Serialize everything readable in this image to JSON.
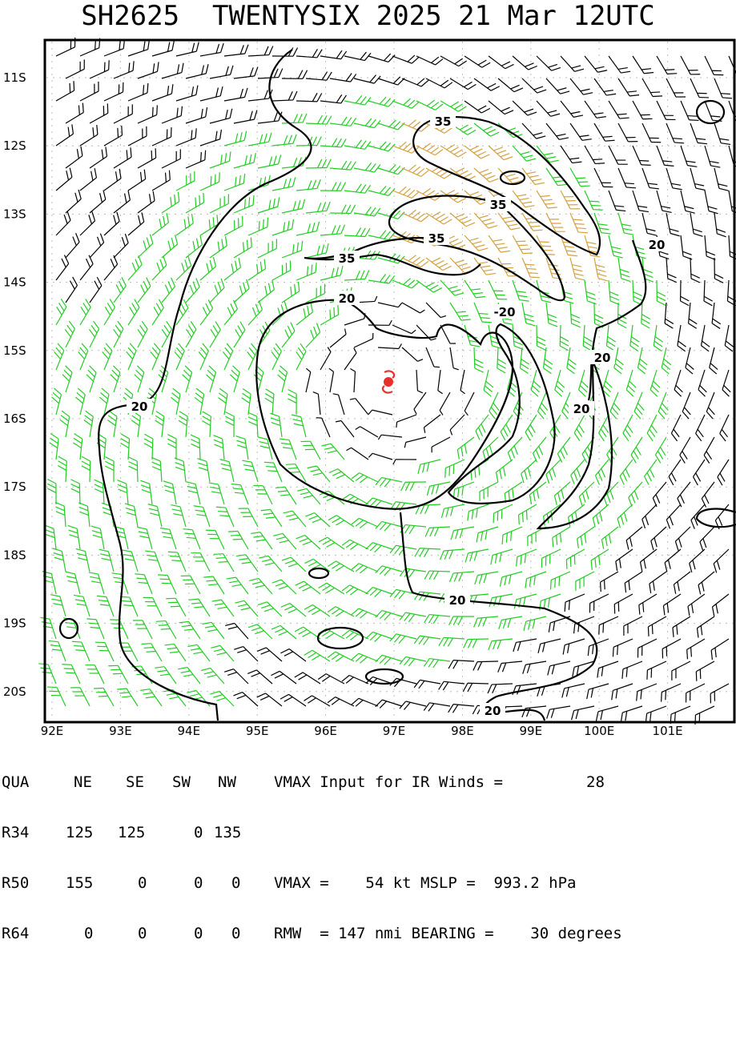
{
  "header": {
    "title": "SH2625  TWENTYSIX 2025 21 Mar 12UTC"
  },
  "map": {
    "lat_labels": [
      "11S",
      "12S",
      "13S",
      "14S",
      "15S",
      "16S",
      "17S",
      "18S",
      "19S",
      "20S"
    ],
    "lon_labels": [
      "92E",
      "93E",
      "94E",
      "95E",
      "96E",
      "97E",
      "98E",
      "99E",
      "100E",
      "101E"
    ],
    "contour_labels": [
      {
        "text": "35"
      },
      {
        "text": "35"
      },
      {
        "text": "35"
      },
      {
        "text": "35"
      },
      {
        "text": "20"
      },
      {
        "text": "-20"
      },
      {
        "text": "20"
      },
      {
        "text": "20"
      },
      {
        "text": "20"
      },
      {
        "text": "20"
      },
      {
        "text": "20"
      },
      {
        "text": "20"
      }
    ],
    "storm_center": {
      "lat": "15.5S",
      "lon": "96.8E",
      "symbol": "tropical-storm-icon",
      "color": "#e8302a"
    },
    "colors": {
      "calm_barbs": "#000000",
      "r34_barbs": "#22cc22",
      "r50_barbs": "#d4a040",
      "contours": "#000000"
    }
  },
  "table": {
    "header": {
      "qua": "QUA",
      "ne": "NE",
      "se": "SE",
      "sw": "SW",
      "nw": "NW",
      "text": "VMAX Input for IR Winds =",
      "value": "28"
    },
    "r34": {
      "label": "R34",
      "ne": "125",
      "se": "125",
      "sw": "0",
      "nw": "135"
    },
    "r50": {
      "label": "R50",
      "ne": "155",
      "se": "0",
      "sw": "0",
      "nw": "0",
      "text": "VMAX =    54 kt MSLP =  993.2 hPa"
    },
    "r64": {
      "label": "R64",
      "ne": "0",
      "se": "0",
      "sw": "0",
      "nw": "0",
      "text": "RMW  = 147 nmi BEARING =    30 degrees"
    }
  }
}
